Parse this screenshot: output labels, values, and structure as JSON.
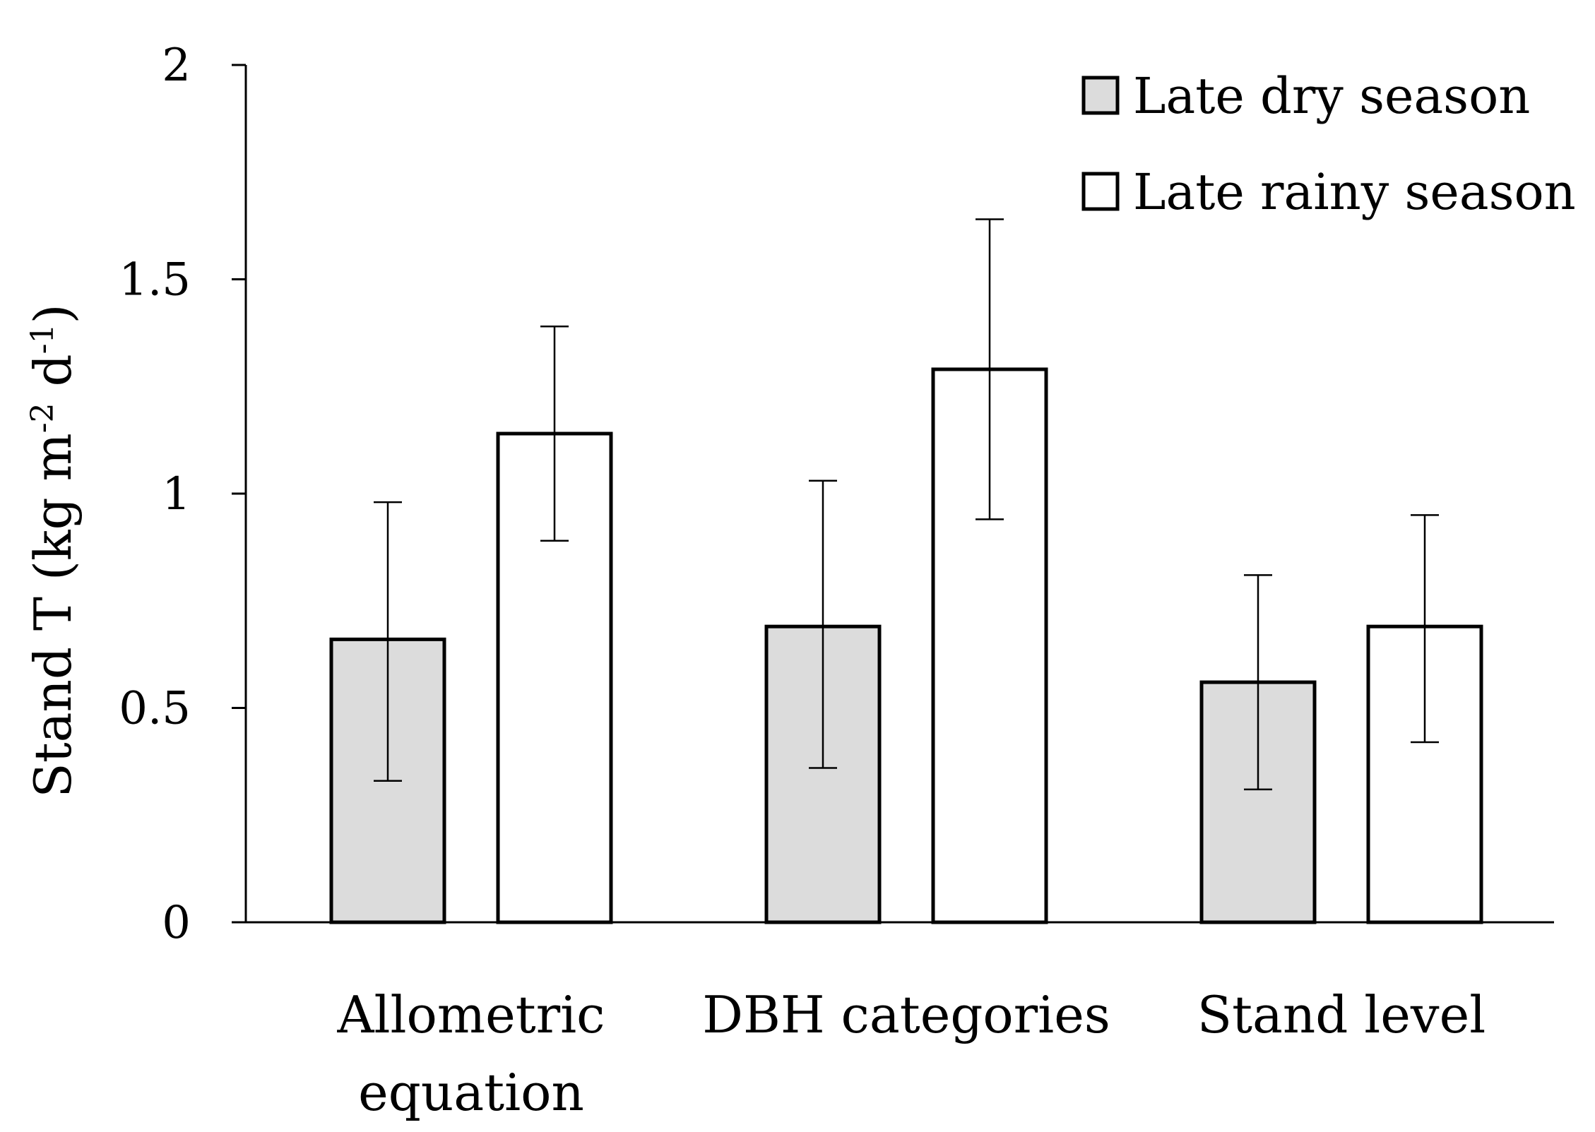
{
  "chart_data": {
    "type": "bar",
    "title": "",
    "xlabel": "",
    "ylabel": {
      "parts": [
        {
          "text": "Stand T (kg m"
        },
        {
          "text": "-2",
          "sup": true
        },
        {
          "text": " d"
        },
        {
          "text": "-1",
          "sup": true
        },
        {
          "text": ")"
        }
      ]
    },
    "ylim": [
      0,
      2
    ],
    "yticks": [
      "0",
      "0.5",
      "1",
      "1.5",
      "2"
    ],
    "categories": [
      [
        "Allometric",
        "equation"
      ],
      [
        "DBH categories"
      ],
      [
        "Stand level"
      ]
    ],
    "series": [
      {
        "name": "Late dry season",
        "fill": "#dcdcdc",
        "values": [
          0.66,
          0.69,
          0.56
        ],
        "error_low": [
          0.33,
          0.36,
          0.31
        ],
        "error_high": [
          0.98,
          1.03,
          0.81
        ]
      },
      {
        "name": "Late rainy season",
        "fill": "#ffffff",
        "values": [
          1.14,
          1.29,
          0.69
        ],
        "error_low": [
          0.89,
          0.94,
          0.42
        ],
        "error_high": [
          1.39,
          1.64,
          0.95
        ]
      }
    ],
    "legend_position": "top-right",
    "grid": false,
    "edge_color": "#000000"
  }
}
